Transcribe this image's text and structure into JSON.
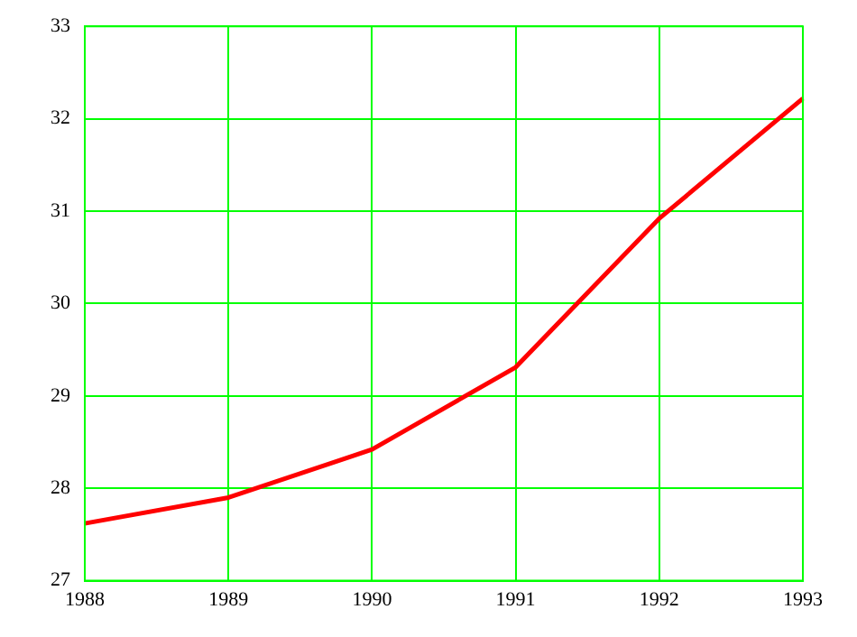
{
  "chart_data": {
    "type": "line",
    "categories": [
      "1988",
      "1989",
      "1990",
      "1991",
      "1992",
      "1993"
    ],
    "series": [
      {
        "color": "#ff0000",
        "values": [
          27.62,
          27.9,
          28.42,
          29.31,
          30.92,
          32.22
        ]
      }
    ],
    "ylim": [
      27,
      33
    ],
    "yticks": [
      27,
      28,
      29,
      30,
      31,
      32,
      33
    ],
    "grid": true,
    "legend": false,
    "marker": "none",
    "line_style": "solid"
  }
}
